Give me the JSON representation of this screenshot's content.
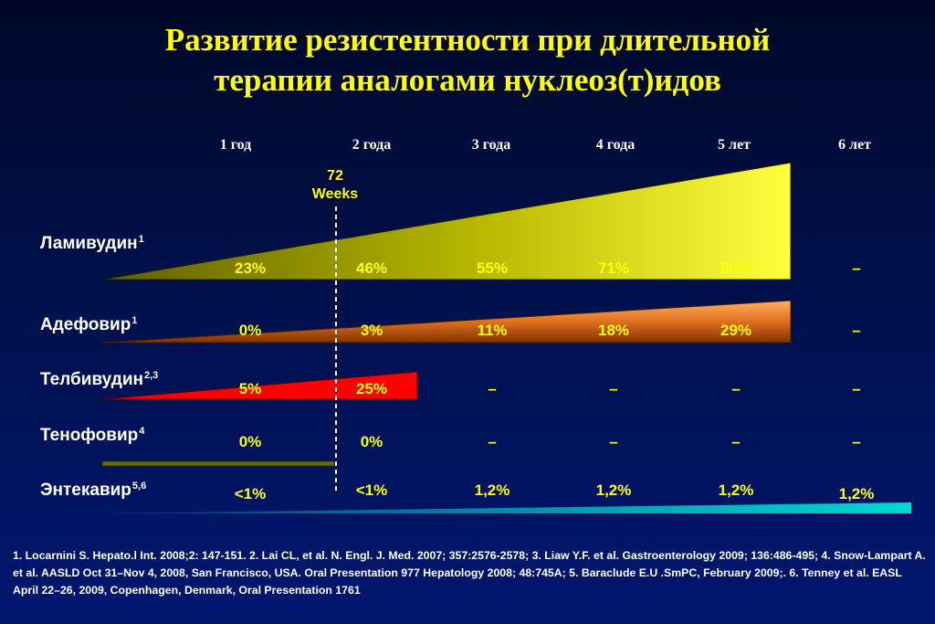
{
  "title_lines": [
    "Развитие резистентности при длительной",
    "терапии аналогами нуклеоз(т)идов"
  ],
  "week_marker": {
    "value": "72",
    "unit": "Weeks"
  },
  "chart_data": {
    "type": "table",
    "columns": [
      "1 год",
      "2 года",
      "3 года",
      "4 года",
      "5 лет",
      "6 лет"
    ],
    "rows": [
      {
        "drug": "Ламивудин",
        "refs": "1",
        "values": [
          "23%",
          "46%",
          "55%",
          "71%",
          "80%",
          "–"
        ],
        "numeric": [
          23,
          46,
          55,
          71,
          80,
          null
        ],
        "color": "#e8e800"
      },
      {
        "drug": "Адефовир",
        "refs": "1",
        "values": [
          "0%",
          "3%",
          "11%",
          "18%",
          "29%",
          "–"
        ],
        "numeric": [
          0,
          3,
          11,
          18,
          29,
          null
        ],
        "color": "#f07818"
      },
      {
        "drug": "Телбивудин",
        "refs": "2,3",
        "values": [
          "5%",
          "25%",
          "–",
          "–",
          "–",
          "–"
        ],
        "numeric": [
          5,
          25,
          null,
          null,
          null,
          null
        ],
        "color": "#ff0000"
      },
      {
        "drug": "Тенофовир",
        "refs": "4",
        "values": [
          "0%",
          "0%",
          "–",
          "–",
          "–",
          "–"
        ],
        "numeric": [
          0,
          0,
          null,
          null,
          null,
          null
        ],
        "color": "#808000"
      },
      {
        "drug": "Энтекавир",
        "refs": "5,6",
        "values": [
          "<1%",
          "<1%",
          "1,2%",
          "1,2%",
          "1,2%",
          "1,2%"
        ],
        "numeric": [
          0.5,
          0.5,
          1.2,
          1.2,
          1.2,
          1.2
        ],
        "color": "#00c8c8"
      }
    ]
  },
  "references": "1. Locarnini S. Hepato.l Int. 2008;2: 147-151. 2. Lai CL, et al. N. Engl. J. Med. 2007; 357:2576-2578; 3. Liaw Y.F. et al. Gastroenterology 2009; 136:486-495; 4. Snow-Lampart A. et al. AASLD Oct 31–Nov 4, 2008, San Francisco, USA. Oral Presentation 977 Hepatology 2008; 48:745A; 5. Baraclude E.U .SmPC, February 2009;. 6. Tenney et al. EASL April 22–26, 2009, Copenhagen, Denmark, Oral Presentation 1761"
}
